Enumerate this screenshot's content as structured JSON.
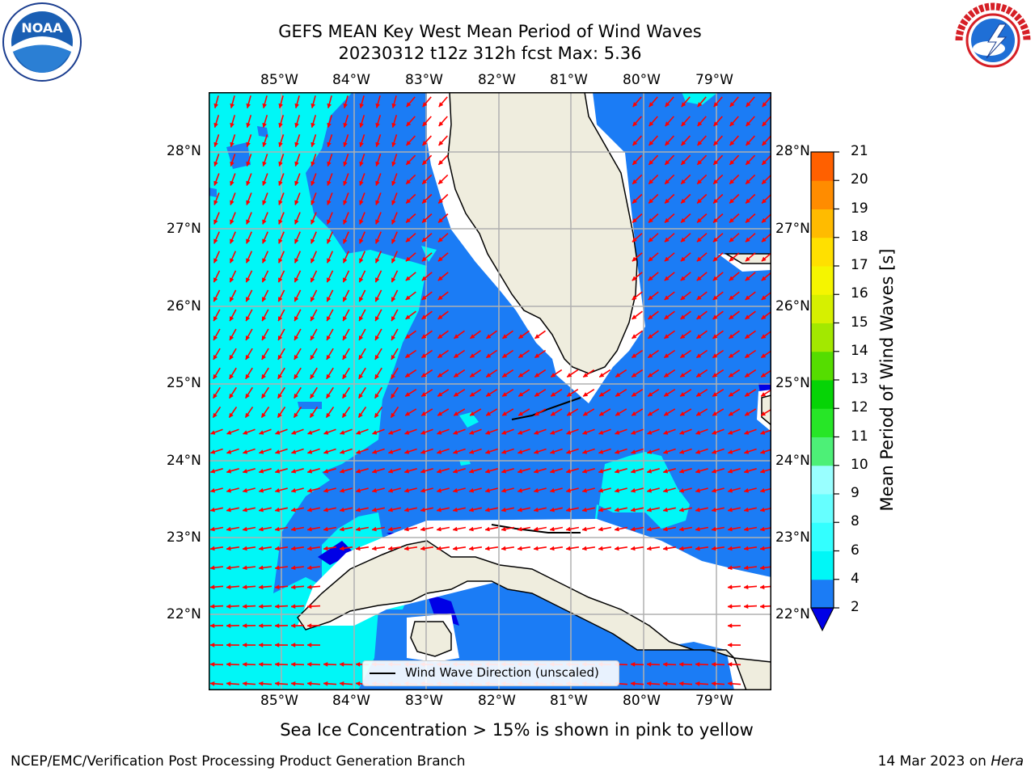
{
  "title_line1": "GEFS MEAN Key West Mean Period of Wind Waves",
  "title_line2": "20230312 t12z 312h fcst   Max: 5.36",
  "lon_labels": [
    "85°W",
    "84°W",
    "83°W",
    "82°W",
    "81°W",
    "80°W",
    "79°W"
  ],
  "lat_labels": [
    "28°N",
    "27°N",
    "26°N",
    "25°N",
    "24°N",
    "23°N",
    "22°N"
  ],
  "legend_label": "Wind Wave Direction (unscaled)",
  "colorbar": {
    "label": "Mean Period of Wind Waves [s]",
    "ticks": [
      "2",
      "4",
      "6",
      "8",
      "9",
      "10",
      "11",
      "12",
      "13",
      "14",
      "15",
      "16",
      "17",
      "18",
      "19",
      "20",
      "21"
    ],
    "colors": [
      "#1b7cf5",
      "#00f7f7",
      "#33ffff",
      "#66ffff",
      "#99ffff",
      "#4df077",
      "#27e627",
      "#06d406",
      "#55dd00",
      "#a3e800",
      "#d6f000",
      "#f5f500",
      "#ffe000",
      "#ffbb00",
      "#ff8c00",
      "#ff6000",
      "#ff3300",
      "#ff0000"
    ],
    "under_color": "#0000e6"
  },
  "note": "Sea Ice Concentration > 15% is shown in pink to yellow",
  "footer_left": "NCEP/EMC/Verification Post Processing Product Generation Branch",
  "footer_date": "14 Mar 2023 on ",
  "footer_machine": "Hera",
  "logo_left": "NOAA",
  "logo_right": "NATIONAL WEATHER SERVICE"
}
